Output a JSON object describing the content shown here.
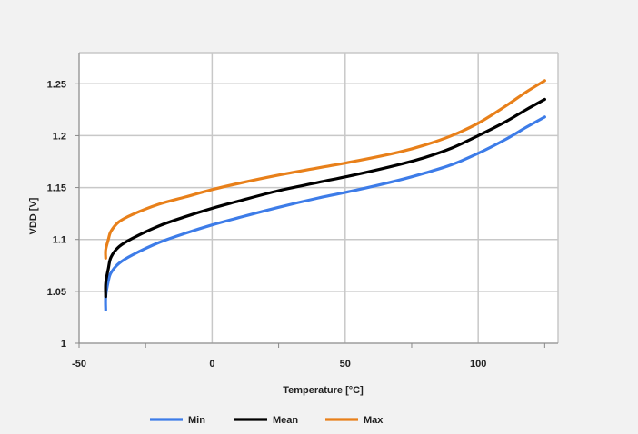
{
  "chart_data": {
    "type": "line",
    "title": "",
    "xlabel": "Temperature [°C]",
    "ylabel": "VDD [V]",
    "xlim": [
      -50,
      130
    ],
    "ylim": [
      1.0,
      1.28
    ],
    "x_ticks": [
      -50,
      0,
      50,
      100
    ],
    "x_tick_labels": [
      "-50",
      "0",
      "50",
      "100"
    ],
    "y_ticks": [
      1.0,
      1.05,
      1.1,
      1.15,
      1.2,
      1.25
    ],
    "y_tick_labels": [
      "1",
      "1.05",
      "1.1",
      "1.15",
      "1.2",
      "1.25"
    ],
    "grid": true,
    "legend_position": "bottom",
    "series": [
      {
        "name": "Min",
        "color": "#3d7ce8",
        "x": [
          -40,
          -40,
          -39,
          -38,
          -35,
          -30,
          -20,
          -10,
          0,
          10,
          25,
          40,
          55,
          70,
          80,
          90,
          100,
          110,
          118,
          125
        ],
        "y": [
          1.032,
          1.045,
          1.06,
          1.068,
          1.077,
          1.085,
          1.097,
          1.106,
          1.114,
          1.121,
          1.131,
          1.14,
          1.148,
          1.157,
          1.164,
          1.172,
          1.183,
          1.196,
          1.208,
          1.218
        ]
      },
      {
        "name": "Mean",
        "color": "#000000",
        "x": [
          -40,
          -40,
          -39,
          -38,
          -35,
          -30,
          -20,
          -10,
          0,
          10,
          25,
          40,
          55,
          70,
          80,
          90,
          100,
          110,
          118,
          125
        ],
        "y": [
          1.045,
          1.058,
          1.072,
          1.083,
          1.093,
          1.101,
          1.113,
          1.122,
          1.13,
          1.137,
          1.147,
          1.155,
          1.163,
          1.172,
          1.179,
          1.188,
          1.2,
          1.213,
          1.225,
          1.235
        ]
      },
      {
        "name": "Max",
        "color": "#e8801a",
        "x": [
          -40,
          -40,
          -39,
          -38,
          -35,
          -30,
          -20,
          -10,
          0,
          10,
          25,
          40,
          55,
          70,
          80,
          90,
          100,
          110,
          118,
          125
        ],
        "y": [
          1.082,
          1.09,
          1.1,
          1.108,
          1.117,
          1.124,
          1.134,
          1.141,
          1.148,
          1.154,
          1.162,
          1.169,
          1.176,
          1.184,
          1.191,
          1.2,
          1.212,
          1.228,
          1.242,
          1.253
        ]
      }
    ]
  }
}
